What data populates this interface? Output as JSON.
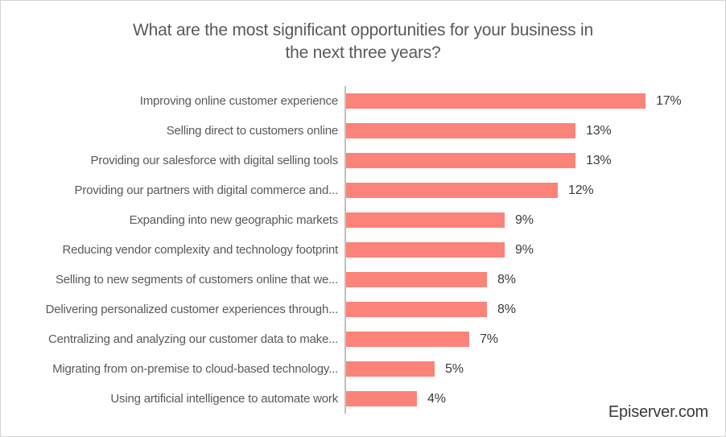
{
  "header": {
    "title_lines": [
      "What are the most significant opportunities for your business in",
      "the next three years?"
    ]
  },
  "chart_data": {
    "type": "bar",
    "orientation": "horizontal",
    "title": "What are the most significant opportunities for your business in the next three years?",
    "categories": [
      "Improving online customer experience",
      "Selling direct to customers online",
      "Providing our salesforce with digital selling tools",
      "Providing our partners with digital commerce and...",
      "Expanding into new geographic markets",
      "Reducing vendor complexity and technology footprint",
      "Selling to new segments of customers online that we...",
      "Delivering personalized customer experiences through...",
      "Centralizing and analyzing our customer data to make...",
      "Migrating from on-premise to cloud-based technology...",
      "Using artificial intelligence to automate work"
    ],
    "values": [
      17,
      13,
      13,
      12,
      9,
      9,
      8,
      8,
      7,
      5,
      4
    ],
    "value_suffix": "%",
    "xlim": [
      0,
      18
    ],
    "grid": false,
    "legend": false,
    "data_labels": "outside-end"
  },
  "colors": {
    "bar": "#fb8379",
    "axis": "#bfbfbf",
    "title_text": "#595959",
    "category_text": "#595959",
    "value_text": "#3a3a3a",
    "border": "#d4d4d4",
    "background": "#ffffff"
  },
  "source": "Episerver.com"
}
